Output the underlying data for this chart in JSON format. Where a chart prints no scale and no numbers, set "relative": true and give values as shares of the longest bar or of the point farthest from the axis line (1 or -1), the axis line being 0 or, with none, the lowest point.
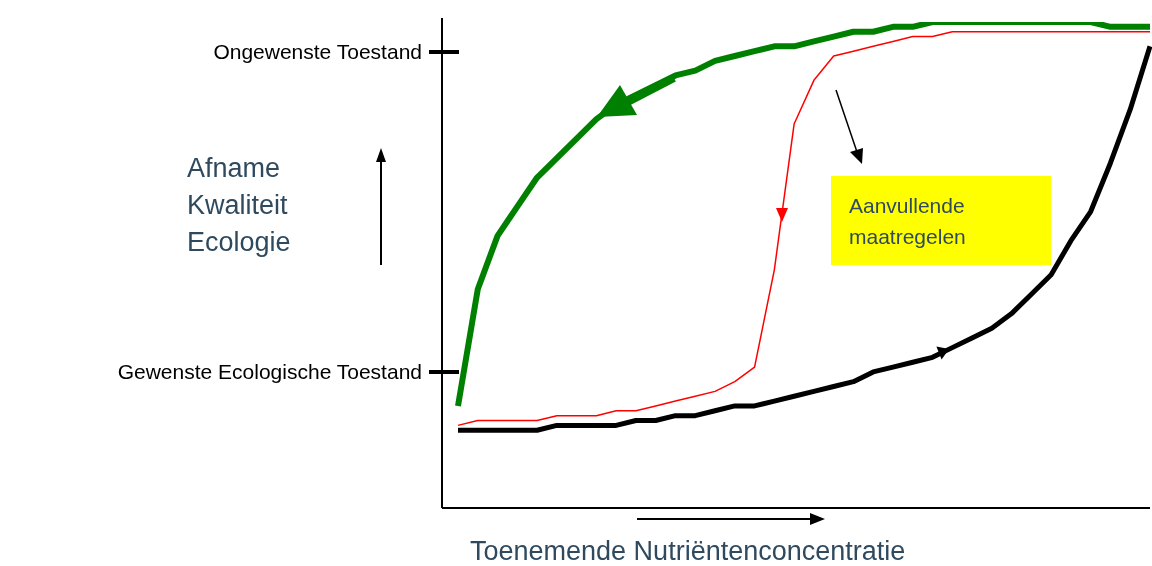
{
  "chart_data": {
    "type": "line",
    "relative": true,
    "xlabel": "Toenemende Nutriëntenconcentratie",
    "annotations": [
      "Ongewenste Toestand",
      "Gewenste Ecologische Toestand",
      "Afname Kwaliteit Ecologie",
      "Aanvullende maatregelen"
    ],
    "categories": [
      null,
      null,
      null,
      null,
      null,
      null,
      null,
      null,
      null,
      null,
      null,
      null,
      null,
      null,
      null,
      null,
      null,
      null,
      null,
      null,
      null,
      null,
      null,
      null,
      null,
      null,
      null,
      null,
      null,
      null,
      null,
      null,
      null,
      null,
      null,
      null
    ],
    "series": [
      {
        "color": "#008000",
        "values": [
          0.21,
          0.45,
          0.56,
          0.62,
          0.68,
          0.72,
          0.76,
          0.8,
          0.83,
          0.85,
          0.87,
          0.89,
          0.9,
          0.92,
          0.93,
          0.94,
          0.95,
          0.95,
          0.96,
          0.97,
          0.98,
          0.98,
          0.99,
          0.99,
          1,
          1,
          1,
          1,
          1,
          1,
          1,
          1,
          1,
          0.99,
          0.99,
          0.99
        ]
      },
      {
        "color": "#ff0000",
        "values": [
          0.17,
          0.18,
          0.18,
          0.18,
          0.18,
          0.19,
          0.19,
          0.19,
          0.2,
          0.2,
          0.21,
          0.22,
          0.23,
          0.24,
          0.26,
          0.29,
          0.49,
          0.79,
          0.88,
          0.93,
          0.94,
          0.95,
          0.96,
          0.97,
          0.97,
          0.98,
          0.98,
          0.98,
          0.98,
          0.98,
          0.98,
          0.98,
          0.98,
          0.98,
          0.98,
          0.98
        ]
      },
      {
        "color": "#000000",
        "values": [
          0.16,
          0.16,
          0.16,
          0.16,
          0.16,
          0.17,
          0.17,
          0.17,
          0.17,
          0.18,
          0.18,
          0.19,
          0.19,
          0.2,
          0.21,
          0.21,
          0.22,
          0.23,
          0.24,
          0.25,
          0.26,
          0.28,
          0.29,
          0.3,
          0.31,
          0.33,
          0.35,
          0.37,
          0.4,
          0.44,
          0.48,
          0.55,
          0.61,
          0.71,
          0.82,
          0.95
        ]
      }
    ]
  }
}
